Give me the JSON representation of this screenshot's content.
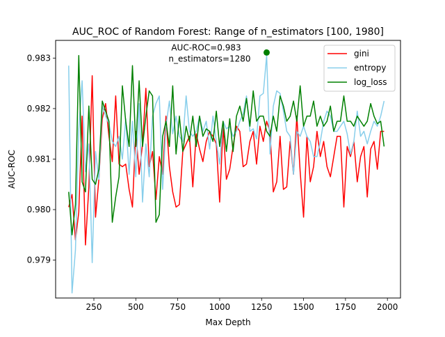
{
  "chart_data": {
    "type": "line",
    "title": "AUC_ROC of Random Forest: Range of n_estimators [100, 1980]",
    "xlabel": "Max Depth",
    "ylabel": "AUC-ROC",
    "xlim": [
      22,
      2078
    ],
    "ylim": [
      0.97825,
      0.98335
    ],
    "xticks": [
      250,
      500,
      750,
      1000,
      1250,
      1500,
      1750,
      2000
    ],
    "xtick_labels": [
      "250",
      "500",
      "750",
      "1000",
      "1250",
      "1500",
      "1750",
      "2000"
    ],
    "yticks": [
      0.979,
      0.98,
      0.981,
      0.982,
      0.983
    ],
    "ytick_labels": [
      "0.979",
      "0.980",
      "0.981",
      "0.982",
      "0.983"
    ],
    "grid": false,
    "legend": {
      "placement": "top-right"
    },
    "x": [
      100,
      120,
      140,
      160,
      180,
      200,
      220,
      240,
      260,
      280,
      300,
      320,
      340,
      360,
      380,
      400,
      420,
      440,
      460,
      480,
      500,
      520,
      540,
      560,
      580,
      600,
      620,
      640,
      660,
      680,
      700,
      720,
      740,
      760,
      780,
      800,
      820,
      840,
      860,
      880,
      900,
      920,
      940,
      960,
      980,
      1000,
      1020,
      1040,
      1060,
      1080,
      1100,
      1120,
      1140,
      1160,
      1180,
      1200,
      1220,
      1240,
      1260,
      1280,
      1300,
      1320,
      1340,
      1360,
      1380,
      1400,
      1420,
      1440,
      1460,
      1480,
      1500,
      1520,
      1540,
      1560,
      1580,
      1600,
      1620,
      1640,
      1660,
      1680,
      1700,
      1720,
      1740,
      1760,
      1780,
      1800,
      1820,
      1840,
      1860,
      1880,
      1900,
      1920,
      1940,
      1960,
      1980
    ],
    "series": [
      {
        "name": "gini",
        "color": "#ff0000",
        "values": [
          0.98005,
          0.9803,
          0.9794,
          0.97995,
          0.98185,
          0.9793,
          0.98045,
          0.98265,
          0.97985,
          0.9806,
          0.9818,
          0.9821,
          0.98145,
          0.98095,
          0.98225,
          0.9809,
          0.98085,
          0.9809,
          0.9804,
          0.98005,
          0.98155,
          0.9807,
          0.9813,
          0.9824,
          0.98085,
          0.98115,
          0.9802,
          0.98105,
          0.9807,
          0.98185,
          0.98085,
          0.98035,
          0.98005,
          0.9801,
          0.98115,
          0.9813,
          0.98145,
          0.98045,
          0.9815,
          0.9812,
          0.98095,
          0.98135,
          0.98155,
          0.98145,
          0.9813,
          0.98015,
          0.98165,
          0.9806,
          0.9808,
          0.98125,
          0.98165,
          0.98155,
          0.98085,
          0.9809,
          0.98135,
          0.98155,
          0.9809,
          0.98165,
          0.98135,
          0.98175,
          0.98155,
          0.98035,
          0.98055,
          0.98145,
          0.9804,
          0.98045,
          0.98135,
          0.9807,
          0.98185,
          0.98075,
          0.97985,
          0.98145,
          0.98055,
          0.98085,
          0.98155,
          0.98105,
          0.98135,
          0.98085,
          0.98065,
          0.98105,
          0.98145,
          0.98145,
          0.98005,
          0.98125,
          0.98105,
          0.98135,
          0.98055,
          0.98105,
          0.98125,
          0.98025,
          0.9812,
          0.98135,
          0.9808,
          0.98155,
          0.98155
        ]
      },
      {
        "name": "entropy",
        "color": "#87ceeb",
        "values": [
          0.98285,
          0.97835,
          0.9792,
          0.9816,
          0.98255,
          0.98075,
          0.9813,
          0.97895,
          0.98115,
          0.9806,
          0.98205,
          0.98185,
          0.9817,
          0.98135,
          0.98125,
          0.98145,
          0.981,
          0.9818,
          0.9807,
          0.98175,
          0.98065,
          0.9821,
          0.98015,
          0.9813,
          0.98065,
          0.98185,
          0.9821,
          0.98225,
          0.9804,
          0.98165,
          0.98215,
          0.9815,
          0.98185,
          0.98145,
          0.98135,
          0.98225,
          0.98155,
          0.98145,
          0.98155,
          0.98185,
          0.98155,
          0.98175,
          0.9812,
          0.98185,
          0.98135,
          0.9809,
          0.98175,
          0.9816,
          0.98165,
          0.98145,
          0.98155,
          0.98175,
          0.9819,
          0.98225,
          0.98155,
          0.9816,
          0.9814,
          0.98225,
          0.9823,
          0.98305,
          0.9811,
          0.98205,
          0.98235,
          0.9823,
          0.98195,
          0.98155,
          0.98145,
          0.9807,
          0.98155,
          0.98145,
          0.98165,
          0.98145,
          0.98135,
          0.98105,
          0.98105,
          0.98135,
          0.98175,
          0.98195,
          0.98185,
          0.98155,
          0.98155,
          0.98165,
          0.98175,
          0.9815,
          0.9811,
          0.98135,
          0.98195,
          0.98145,
          0.98155,
          0.9813,
          0.98155,
          0.98175,
          0.98165,
          0.98185,
          0.98215
        ]
      },
      {
        "name": "log_loss",
        "color": "#008000",
        "values": [
          0.98035,
          0.9795,
          0.9801,
          0.98305,
          0.98055,
          0.98035,
          0.98205,
          0.9806,
          0.9805,
          0.9808,
          0.98215,
          0.98195,
          0.98175,
          0.97975,
          0.98025,
          0.98065,
          0.98245,
          0.98175,
          0.98125,
          0.98285,
          0.98125,
          0.98255,
          0.98125,
          0.98185,
          0.98235,
          0.98225,
          0.97975,
          0.9799,
          0.98145,
          0.98175,
          0.98125,
          0.98245,
          0.9811,
          0.98185,
          0.98115,
          0.98165,
          0.98135,
          0.98185,
          0.98125,
          0.98185,
          0.98145,
          0.9816,
          0.98155,
          0.98135,
          0.98195,
          0.98125,
          0.98175,
          0.98115,
          0.9818,
          0.98115,
          0.98185,
          0.98205,
          0.98175,
          0.9822,
          0.98165,
          0.98235,
          0.98175,
          0.98185,
          0.98185,
          0.98155,
          0.98145,
          0.98185,
          0.98155,
          0.98225,
          0.98205,
          0.98175,
          0.98185,
          0.98215,
          0.98175,
          0.98245,
          0.98165,
          0.98185,
          0.98185,
          0.98215,
          0.98165,
          0.98185,
          0.98165,
          0.98175,
          0.98205,
          0.98155,
          0.98175,
          0.98175,
          0.98225,
          0.98175,
          0.98175,
          0.98165,
          0.98185,
          0.98175,
          0.98165,
          0.98175,
          0.9821,
          0.98185,
          0.9817,
          0.98175,
          0.98125
        ]
      }
    ],
    "annotation": {
      "text_line1": "AUC-ROC=0.983",
      "text_line2": "n_estimators=1280",
      "point_x": 1280,
      "point_y": 0.98311,
      "point_color": "#008000"
    }
  }
}
